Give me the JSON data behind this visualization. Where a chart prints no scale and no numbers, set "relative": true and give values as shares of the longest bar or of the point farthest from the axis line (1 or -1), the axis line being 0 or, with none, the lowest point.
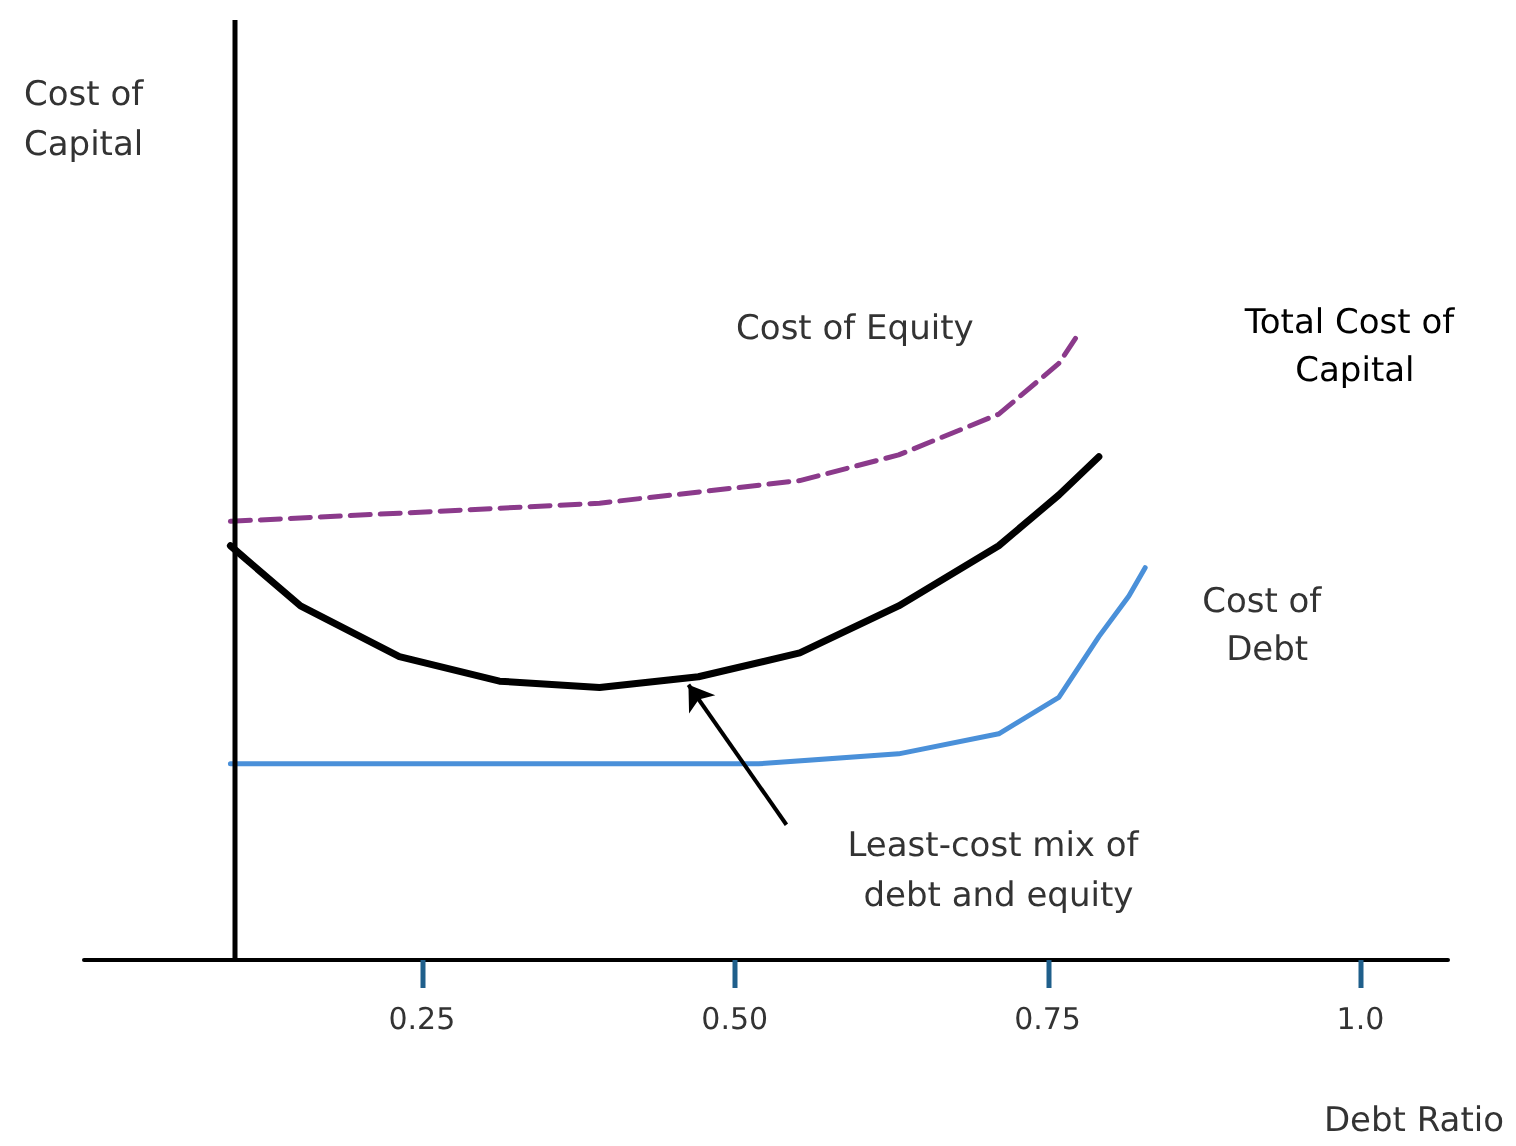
{
  "chart_data": {
    "type": "line",
    "relative": true,
    "xlabel": "Debt Ratio",
    "ylabel": "Cost of Capital",
    "xlim": [
      -0.02,
      1.07
    ],
    "xticks": [
      {
        "value": 0.25,
        "label": "0.25"
      },
      {
        "value": 0.5,
        "label": "0.50"
      },
      {
        "value": 0.75,
        "label": "0.75"
      },
      {
        "value": 1,
        "label": "1.0"
      }
    ],
    "grid": false,
    "legend": false,
    "marker": "none",
    "series": [
      {
        "name": "Cost of Equity",
        "color": "#8b3a8b",
        "line_style": "dashed",
        "x": [
          0.097,
          0.232,
          0.392,
          0.552,
          0.631,
          0.711,
          0.759,
          0.775
        ],
        "values": [
          0.7,
          0.713,
          0.729,
          0.765,
          0.806,
          0.871,
          0.952,
          1
        ]
      },
      {
        "name": "Total Cost of Capital",
        "color": "#000000",
        "line_style": "solid",
        "x": [
          0.097,
          0.153,
          0.232,
          0.312,
          0.392,
          0.471,
          0.552,
          0.631,
          0.711,
          0.759,
          0.791
        ],
        "values": [
          0.661,
          0.565,
          0.484,
          0.445,
          0.435,
          0.452,
          0.49,
          0.565,
          0.661,
          0.742,
          0.803
        ]
      },
      {
        "name": "Cost of Debt",
        "color": "#4a90d9",
        "line_style": "solid",
        "x": [
          0.097,
          0.392,
          0.519,
          0.631,
          0.711,
          0.759,
          0.791,
          0.815,
          0.828
        ],
        "values": [
          0.313,
          0.313,
          0.313,
          0.329,
          0.361,
          0.419,
          0.516,
          0.581,
          0.626
        ]
      }
    ],
    "ref_lines": [
      {
        "axis": "x",
        "value": 0.097,
        "label": null,
        "color": "#000000",
        "line_style": "solid"
      }
    ],
    "annotations": [
      "Least-cost mix of debt and equity"
    ]
  }
}
